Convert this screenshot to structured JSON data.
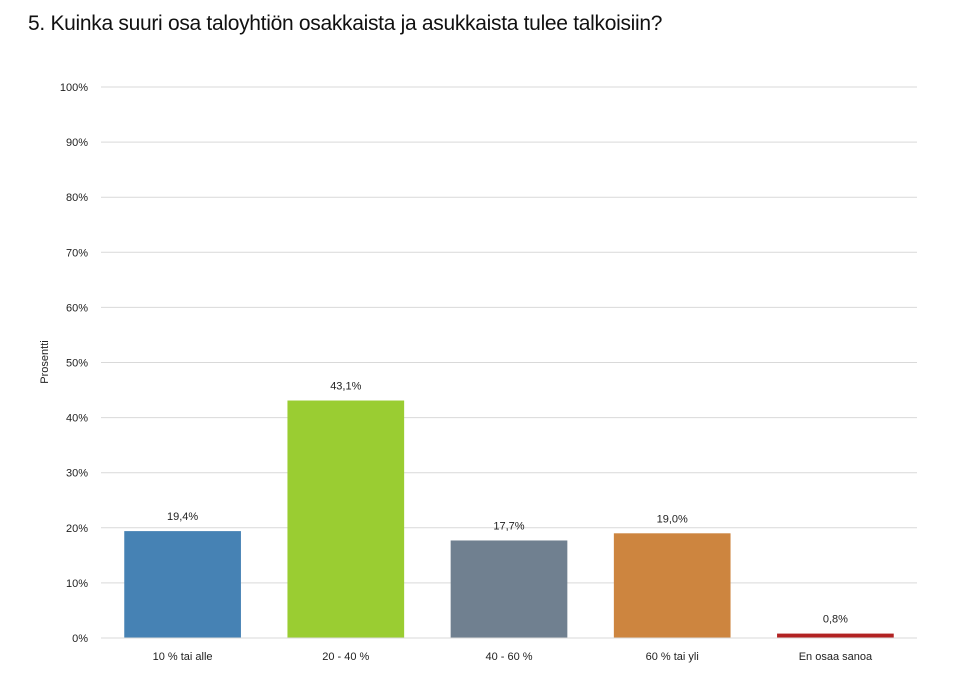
{
  "chart_data": {
    "type": "bar",
    "title": "5. Kuinka suuri osa taloyhtiön osakkaista ja asukkaista tulee talkoisiin?",
    "xlabel": "",
    "ylabel": "Prosentti",
    "ylim": [
      0,
      100
    ],
    "yticks": [
      "0%",
      "10%",
      "20%",
      "30%",
      "40%",
      "50%",
      "60%",
      "70%",
      "80%",
      "90%",
      "100%"
    ],
    "grid": true,
    "categories": [
      "10 % tai alle",
      "20 - 40 %",
      "40 - 60 %",
      "60 % tai yli",
      "En osaa sanoa"
    ],
    "values": [
      19.4,
      43.1,
      17.7,
      19.0,
      0.8
    ],
    "data_labels": [
      "19,4%",
      "43,1%",
      "17,7%",
      "19,0%",
      "0,8%"
    ],
    "colors": [
      "#4682b4",
      "#9acd32",
      "#708090",
      "#cd853f",
      "#b22222"
    ]
  }
}
